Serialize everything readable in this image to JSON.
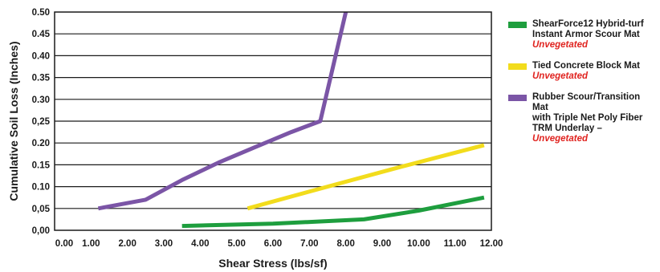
{
  "colors": {
    "background": "#ffffff",
    "plot_border": "#1a1a1a",
    "grid": "#1a1a1a",
    "note": "#e0231f"
  },
  "chart_data": {
    "type": "line",
    "title": "",
    "xlabel": "Shear Stress (lbs/sf)",
    "ylabel": "Cumulative Soil Loss (Inches)",
    "xlim": [
      0,
      12
    ],
    "ylim": [
      0,
      0.5
    ],
    "grid": "horizontal",
    "legend_position": "right",
    "x_ticks": [
      "0.00",
      "1.00",
      "2.00",
      "3.00",
      "4.00",
      "5.00",
      "6.00",
      "7.00",
      "8.00",
      "9.00",
      "10.00",
      "11.00",
      "12.00"
    ],
    "y_ticks": [
      "0,00",
      "0,05",
      "0.10",
      "0.15",
      "0.20",
      "0,25",
      "0.30",
      "0.35",
      "0.40",
      "0.45",
      "0.50"
    ],
    "series": [
      {
        "name": "ShearForce12 Hybrid-turf\nInstant Armor Scour Mat",
        "note": "Unvegetated",
        "color": "#1e9e3e",
        "points": [
          [
            3.5,
            0.01
          ],
          [
            6.0,
            0.015
          ],
          [
            8.5,
            0.025
          ],
          [
            10.0,
            0.045
          ],
          [
            11.8,
            0.075
          ]
        ]
      },
      {
        "name": "Tied Concrete Block Mat",
        "note": "Unvegetated",
        "color": "#f2dc1c",
        "points": [
          [
            5.3,
            0.05
          ],
          [
            7.5,
            0.1
          ],
          [
            9.5,
            0.145
          ],
          [
            11.8,
            0.195
          ]
        ]
      },
      {
        "name": "Rubber Scour/Transition Mat\nwith Triple Net Poly Fiber\nTRM Underlay –",
        "note": "Unvegetated",
        "color": "#7b55a6",
        "points": [
          [
            1.2,
            0.05
          ],
          [
            2.5,
            0.07
          ],
          [
            3.5,
            0.115
          ],
          [
            4.5,
            0.155
          ],
          [
            5.5,
            0.19
          ],
          [
            6.5,
            0.225
          ],
          [
            7.3,
            0.25
          ],
          [
            8.0,
            0.5
          ]
        ]
      }
    ]
  }
}
